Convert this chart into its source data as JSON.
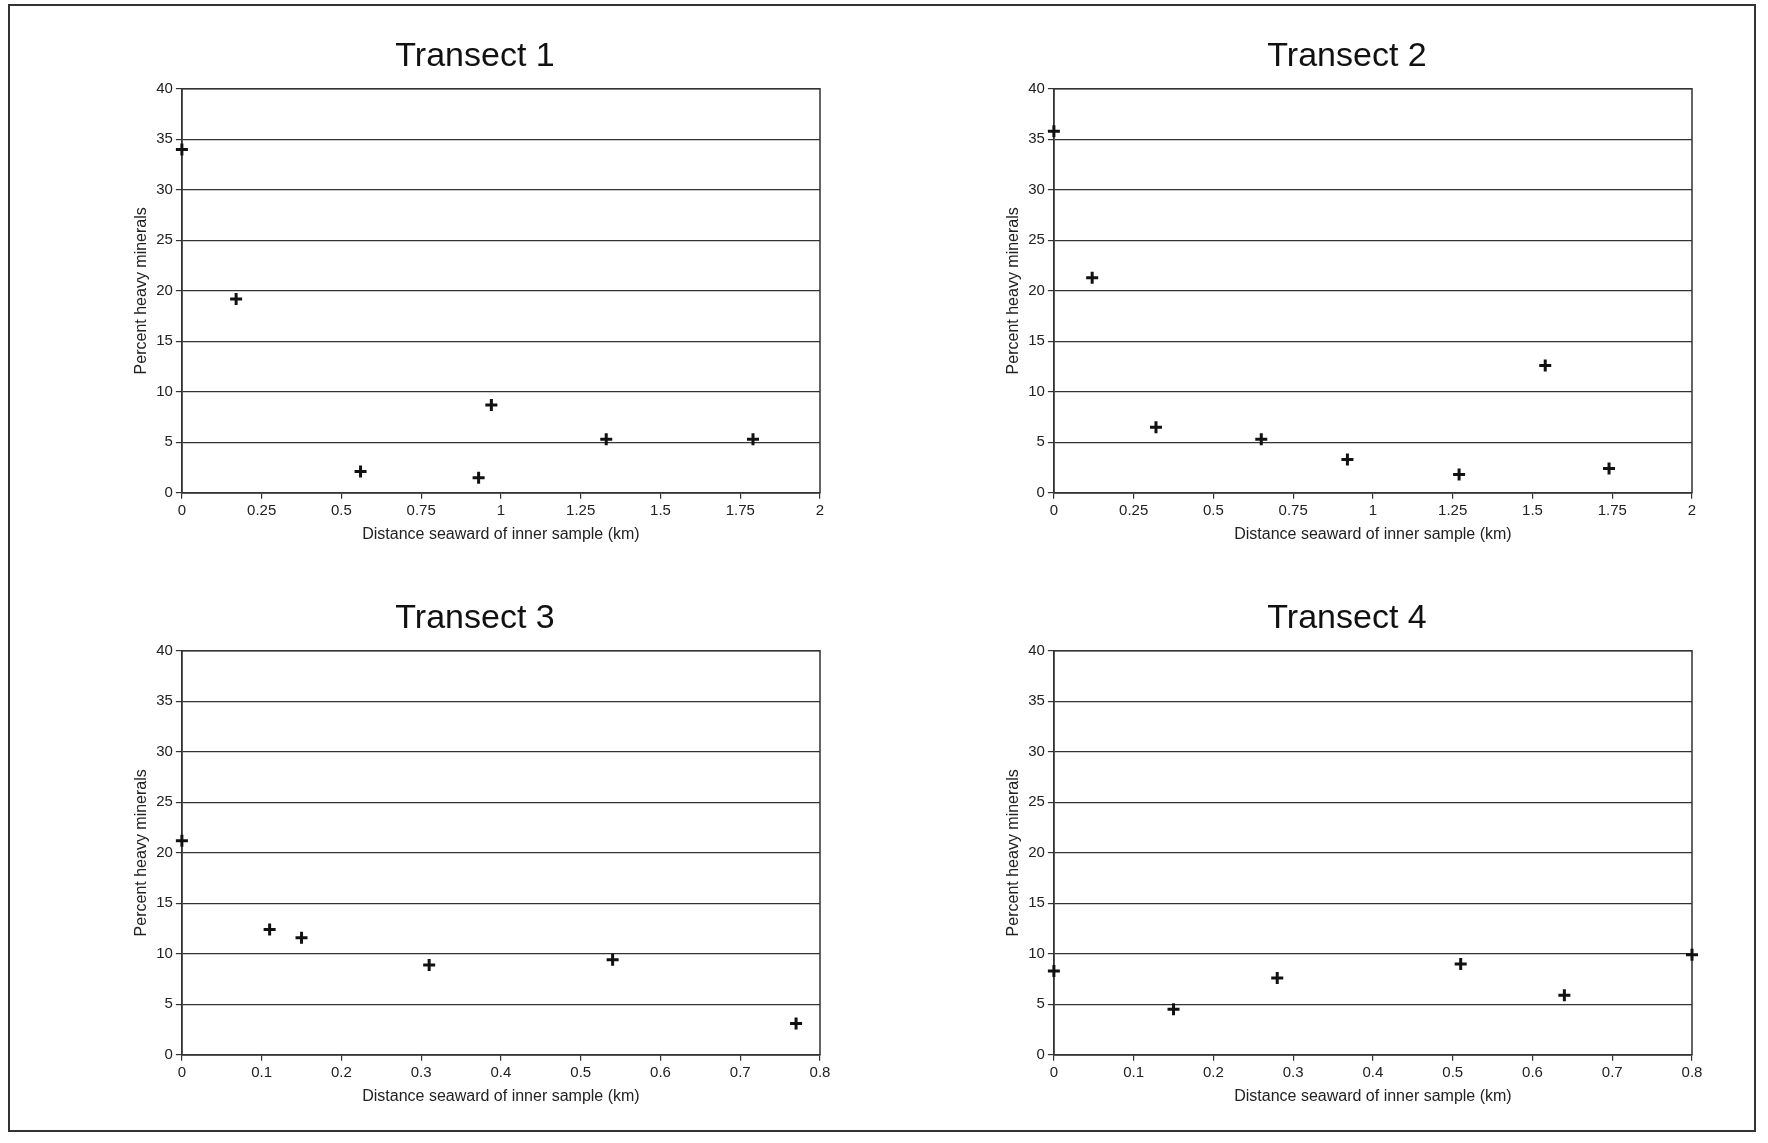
{
  "chart_data": [
    {
      "type": "scatter",
      "title": "Transect 1",
      "xlabel": "Distance seaward of inner sample (km)",
      "ylabel": "Percent heavy minerals",
      "x": [
        0,
        0.17,
        0.56,
        0.93,
        0.97,
        1.33,
        1.79
      ],
      "values": [
        34,
        19.2,
        2.1,
        1.5,
        8.7,
        5.3,
        5.3
      ],
      "color": "#111111",
      "marker": "cross",
      "xlim": [
        0,
        2
      ],
      "xticks": [
        0,
        0.25,
        0.5,
        0.75,
        1,
        1.25,
        1.5,
        1.75,
        2
      ],
      "ylim": [
        0,
        40
      ],
      "yticks": [
        0,
        5,
        10,
        15,
        20,
        25,
        30,
        35,
        40
      ],
      "grid": "y",
      "legend": false
    },
    {
      "type": "scatter",
      "title": "Transect 2",
      "xlabel": "Distance seaward of inner sample (km)",
      "ylabel": "Percent heavy minerals",
      "x": [
        0,
        0.12,
        0.32,
        0.65,
        0.92,
        1.27,
        1.54,
        1.74
      ],
      "values": [
        35.8,
        21.3,
        6.5,
        5.3,
        3.3,
        1.8,
        12.6,
        2.4
      ],
      "color": "#111111",
      "marker": "cross",
      "xlim": [
        0,
        2
      ],
      "xticks": [
        0,
        0.25,
        0.5,
        0.75,
        1,
        1.25,
        1.5,
        1.75,
        2
      ],
      "ylim": [
        0,
        40
      ],
      "yticks": [
        0,
        5,
        10,
        15,
        20,
        25,
        30,
        35,
        40
      ],
      "grid": "y",
      "legend": false
    },
    {
      "type": "scatter",
      "title": "Transect 3",
      "xlabel": "Distance seaward of inner sample (km)",
      "ylabel": "Percent heavy minerals",
      "x": [
        0,
        0.11,
        0.15,
        0.31,
        0.54,
        0.77
      ],
      "values": [
        21.2,
        12.4,
        11.6,
        8.9,
        9.4,
        3.1
      ],
      "color": "#111111",
      "marker": "cross",
      "xlim": [
        0,
        0.8
      ],
      "xticks": [
        0,
        0.1,
        0.2,
        0.3,
        0.4,
        0.5,
        0.6,
        0.7,
        0.8
      ],
      "ylim": [
        0,
        40
      ],
      "yticks": [
        0,
        5,
        10,
        15,
        20,
        25,
        30,
        35,
        40
      ],
      "grid": "y",
      "legend": false
    },
    {
      "type": "scatter",
      "title": "Transect 4",
      "xlabel": "Distance seaward of inner sample (km)",
      "ylabel": "Percent heavy minerals",
      "x": [
        0,
        0.15,
        0.28,
        0.51,
        0.64,
        0.8
      ],
      "values": [
        8.3,
        4.5,
        7.6,
        9,
        5.9,
        9.9
      ],
      "color": "#111111",
      "marker": "cross",
      "xlim": [
        0,
        0.8
      ],
      "xticks": [
        0,
        0.1,
        0.2,
        0.3,
        0.4,
        0.5,
        0.6,
        0.7,
        0.8
      ],
      "ylim": [
        0,
        40
      ],
      "yticks": [
        0,
        5,
        10,
        15,
        20,
        25,
        30,
        35,
        40
      ],
      "grid": "y",
      "legend": false
    }
  ]
}
